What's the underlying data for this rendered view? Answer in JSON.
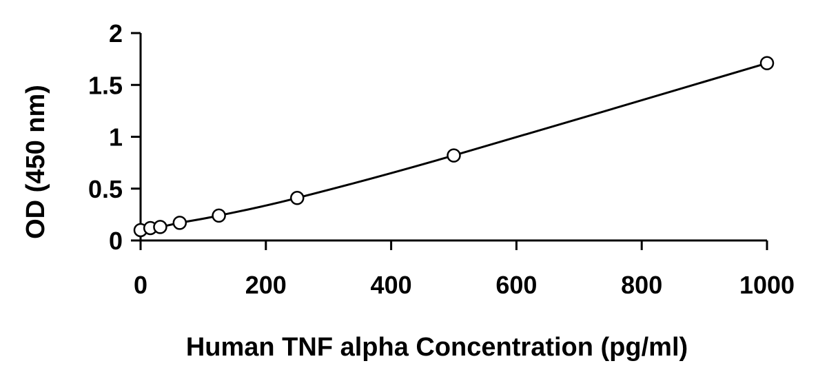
{
  "chart_data": {
    "type": "scatter",
    "title": "",
    "xlabel": "Human TNF alpha Concentration (pg/ml)",
    "ylabel": "OD (450 nm)",
    "xlim": [
      0,
      1000
    ],
    "ylim": [
      0,
      2
    ],
    "x_ticks": [
      0,
      200,
      400,
      600,
      800,
      1000
    ],
    "x_tick_labels": [
      "0",
      "200",
      "400",
      "600",
      "800",
      "1000"
    ],
    "y_ticks": [
      0,
      0.5,
      1,
      1.5,
      2
    ],
    "y_tick_labels": [
      "0",
      "0.5",
      "1",
      "1.5",
      "2"
    ],
    "grid": false,
    "legend": "none",
    "series": [
      {
        "marker": "open-circle",
        "line": "smooth-fit",
        "x": [
          0,
          15.6,
          31.3,
          62.5,
          125,
          250,
          500,
          1000
        ],
        "y": [
          0.1,
          0.12,
          0.13,
          0.17,
          0.24,
          0.41,
          0.82,
          1.71
        ]
      }
    ],
    "colors": {
      "line": "#000000",
      "marker_fill": "#ffffff",
      "marker_stroke": "#000000"
    }
  }
}
